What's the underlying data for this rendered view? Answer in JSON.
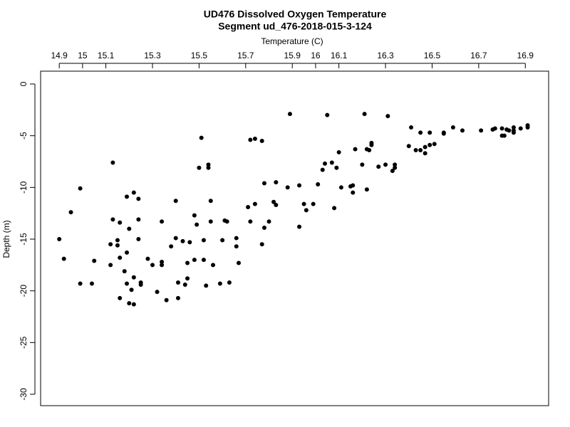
{
  "chart_data": {
    "type": "scatter",
    "title": "UD476 Dissolved Oxygen Temperature",
    "subtitle": "Segment ud_476-2018-015-3-124",
    "x_label": "Temperature (C)",
    "y_label": "Depth (m)",
    "color": "#000000",
    "grid": false,
    "xlim": [
      14.82,
      17.0
    ],
    "ylim": [
      -31.1,
      1.24
    ],
    "xticks": [
      14.9,
      15,
      15.1,
      15.3,
      15.5,
      15.7,
      15.9,
      16,
      16.1,
      16.3,
      16.5,
      16.7,
      16.9
    ],
    "yticks": [
      0,
      -5,
      -10,
      -15,
      -20,
      -25,
      -30
    ],
    "x": [
      14.9,
      14.92,
      14.95,
      14.99,
      14.99,
      15.05,
      15.04,
      15.13,
      15.13,
      15.12,
      15.12,
      15.15,
      15.15,
      15.16,
      15.16,
      15.16,
      15.18,
      15.19,
      15.19,
      15.19,
      15.2,
      15.2,
      15.22,
      15.22,
      15.21,
      15.22,
      15.24,
      15.24,
      15.24,
      15.25,
      15.25,
      15.28,
      15.3,
      15.32,
      15.34,
      15.34,
      15.34,
      15.36,
      15.38,
      15.4,
      15.4,
      15.41,
      15.41,
      15.43,
      15.44,
      15.45,
      15.45,
      15.46,
      15.48,
      15.48,
      15.49,
      15.5,
      15.51,
      15.52,
      15.52,
      15.53,
      15.54,
      15.54,
      15.55,
      15.55,
      15.56,
      15.6,
      15.59,
      15.61,
      15.62,
      15.63,
      15.66,
      15.66,
      15.67,
      15.71,
      15.72,
      15.72,
      15.74,
      15.74,
      15.77,
      15.77,
      15.78,
      15.78,
      15.8,
      15.82,
      15.83,
      15.83,
      15.88,
      15.89,
      15.93,
      15.93,
      15.95,
      15.96,
      15.99,
      16.01,
      16.03,
      16.04,
      16.05,
      16.07,
      16.08,
      16.09,
      16.1,
      16.11,
      16.15,
      16.16,
      16.16,
      16.17,
      16.2,
      16.21,
      16.22,
      16.22,
      16.23,
      16.24,
      16.24,
      16.27,
      16.3,
      16.31,
      16.33,
      16.34,
      16.34,
      16.4,
      16.41,
      16.43,
      16.45,
      16.45,
      16.47,
      16.47,
      16.49,
      16.49,
      16.51,
      16.55,
      16.55,
      16.59,
      16.63,
      16.71,
      16.76,
      16.77,
      16.8,
      16.8,
      16.81,
      16.82,
      16.83,
      16.85,
      16.85,
      16.85,
      16.88,
      16.91,
      16.91
    ],
    "values": [
      -15.0,
      -16.9,
      -12.4,
      -10.1,
      -19.3,
      -17.1,
      -19.3,
      -7.6,
      -13.1,
      -15.5,
      -17.5,
      -15.1,
      -15.6,
      -13.4,
      -16.8,
      -20.7,
      -18.1,
      -19.3,
      -10.9,
      -16.3,
      -21.2,
      -14.0,
      -10.5,
      -21.3,
      -19.9,
      -18.7,
      -11.1,
      -15.0,
      -13.1,
      -19.4,
      -19.2,
      -16.9,
      -17.5,
      -20.1,
      -17.5,
      -17.2,
      -13.3,
      -20.9,
      -15.7,
      -11.3,
      -14.9,
      -19.2,
      -20.7,
      -15.2,
      -19.4,
      -17.3,
      -18.8,
      -15.3,
      -17.0,
      -12.7,
      -13.6,
      -8.1,
      -5.2,
      -15.1,
      -17.0,
      -19.5,
      -7.8,
      -8.1,
      -13.3,
      -11.3,
      -17.5,
      -15.1,
      -19.3,
      -13.2,
      -13.3,
      -19.2,
      -14.9,
      -15.7,
      -17.3,
      -11.9,
      -13.3,
      -5.4,
      -5.3,
      -11.6,
      -5.5,
      -15.5,
      -13.9,
      -9.6,
      -13.3,
      -11.4,
      -9.5,
      -11.7,
      -10.0,
      -2.9,
      -13.8,
      -9.8,
      -11.6,
      -12.2,
      -11.6,
      -9.7,
      -8.3,
      -7.7,
      -3.0,
      -7.6,
      -12.0,
      -8.1,
      -6.6,
      -10.0,
      -9.9,
      -9.8,
      -10.5,
      -6.3,
      -7.8,
      -2.9,
      -10.2,
      -6.3,
      -6.4,
      -5.9,
      -5.7,
      -8.0,
      -7.8,
      -3.1,
      -8.4,
      -8.1,
      -7.8,
      -6.0,
      -4.2,
      -6.4,
      -6.4,
      -4.7,
      -6.7,
      -6.1,
      -4.7,
      -5.9,
      -5.8,
      -4.7,
      -4.8,
      -4.2,
      -4.5,
      -4.5,
      -4.4,
      -4.3,
      -5.0,
      -4.3,
      -5.0,
      -4.4,
      -4.5,
      -4.5,
      -4.7,
      -4.2,
      -4.3,
      -4.0,
      -4.2
    ]
  }
}
